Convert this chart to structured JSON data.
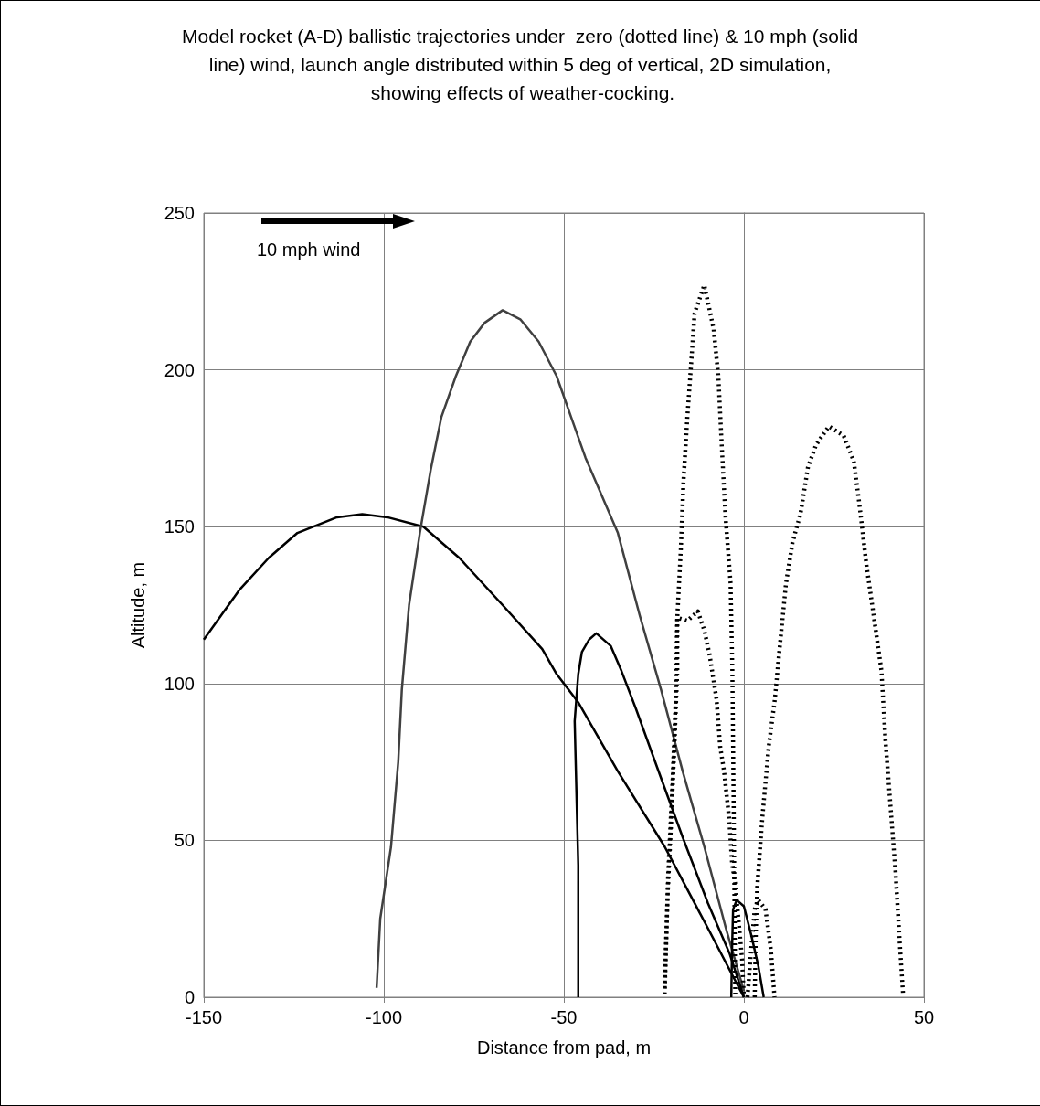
{
  "chart_data": {
    "type": "line",
    "title": "Model rocket (A-D) ballistic trajectories under  zero (dotted line) & 10 mph (solid line) wind, launch angle distributed within 5 deg of vertical, 2D simulation, showing effects of weather-cocking.",
    "xlabel": "Distance from pad, m",
    "ylabel": "Altitude, m",
    "annotations": [
      "10 mph wind"
    ],
    "xlim": [
      -150,
      50
    ],
    "xticks": [
      -150,
      -100,
      -50,
      0,
      50
    ],
    "ylim": [
      0,
      250
    ],
    "yticks": [
      0,
      50,
      100,
      150,
      200,
      250
    ],
    "grid": true,
    "marker": "none",
    "line_style": "solid",
    "series": [
      {
        "color": "#000000",
        "x": [
          0,
          -10,
          -22,
          -35,
          -46,
          -52,
          -56,
          -67,
          -79,
          -89,
          -99,
          -106,
          -113,
          -124,
          -132,
          -140,
          -145,
          -150
        ],
        "values": [
          0,
          22,
          48,
          72,
          94,
          103,
          111,
          125,
          140,
          150,
          153,
          154,
          153,
          148,
          140,
          130,
          122,
          114
        ]
      },
      {
        "color": "#404040",
        "x": [
          -102,
          -101,
          -98,
          -96,
          -95,
          -93,
          -90,
          -87,
          -84,
          -80,
          -76,
          -72,
          -67,
          -62,
          -57,
          -52,
          -48,
          -44,
          -35,
          -29,
          -23,
          -17,
          -11,
          -5,
          0
        ],
        "values": [
          3,
          25,
          48,
          75,
          98,
          125,
          148,
          168,
          185,
          198,
          209,
          215,
          219,
          216,
          209,
          198,
          185,
          172,
          148,
          122,
          98,
          72,
          48,
          22,
          2
        ]
      },
      {
        "color": "#000000",
        "x": [
          -46,
          -46,
          -46,
          -47,
          -46,
          -45,
          -43,
          -41,
          -37,
          -34,
          -30,
          -24,
          -17,
          -10,
          -4,
          0
        ],
        "values": [
          0,
          20,
          42,
          88,
          103,
          110,
          114,
          116,
          112,
          104,
          92,
          73,
          51,
          30,
          14,
          0
        ]
      },
      {
        "color": "#000000",
        "x": [
          -3.5,
          -3.3,
          -3,
          -2,
          0,
          2,
          4,
          5.5
        ],
        "values": [
          0,
          15,
          28,
          31,
          29,
          20,
          10,
          0
        ]
      },
      {
        "color": "#000000",
        "line_style": "dotted",
        "x": [
          -22,
          -21,
          -19.8,
          -18.9,
          -18.5,
          -17.5,
          -16.8,
          -15.7,
          -14.7,
          -13.7,
          -11,
          -8.4,
          -7.1,
          -6.2,
          -5.1,
          -3.7,
          -3.2,
          -2.8,
          -2.4
        ],
        "values": [
          1,
          40,
          69,
          96,
          121,
          143,
          164,
          185,
          201,
          218,
          227,
          213,
          198,
          177,
          153,
          132,
          104,
          56,
          0
        ]
      },
      {
        "color": "#000000",
        "line_style": "dotted",
        "x": [
          -22,
          -21.2,
          -20.2,
          -19.3,
          -18.5,
          -18.5,
          -15.7,
          -12.8,
          -11,
          -9.5,
          -7.6,
          -6.6,
          -5.5,
          -4.1,
          -3.3,
          -2.3,
          -0.5,
          0
        ],
        "values": [
          3,
          32,
          56,
          80,
          104,
          121,
          120,
          123,
          117,
          109,
          95,
          80,
          72,
          57,
          43,
          35,
          12,
          0
        ]
      },
      {
        "color": "#000000",
        "line_style": "dotted",
        "x": [
          3,
          3.3,
          3.7,
          5.1,
          6.9,
          8.6,
          9.9,
          11.7,
          13.5,
          15.7,
          17.8,
          20,
          23.6,
          27.7,
          30.5,
          32.2,
          34,
          36,
          38.2,
          39.3,
          40.7,
          42.1,
          43.3,
          44.2
        ],
        "values": [
          0,
          20,
          35,
          57,
          80,
          95,
          111,
          132,
          145,
          154,
          169,
          176,
          182,
          179,
          171,
          156,
          138,
          122,
          104,
          82,
          61,
          40,
          17,
          1
        ]
      },
      {
        "color": "#000000",
        "line_style": "dotted",
        "x": [
          1,
          2,
          3,
          4,
          6,
          7.5,
          8.5
        ],
        "values": [
          0,
          15,
          28,
          31,
          28,
          15,
          0
        ]
      }
    ]
  }
}
